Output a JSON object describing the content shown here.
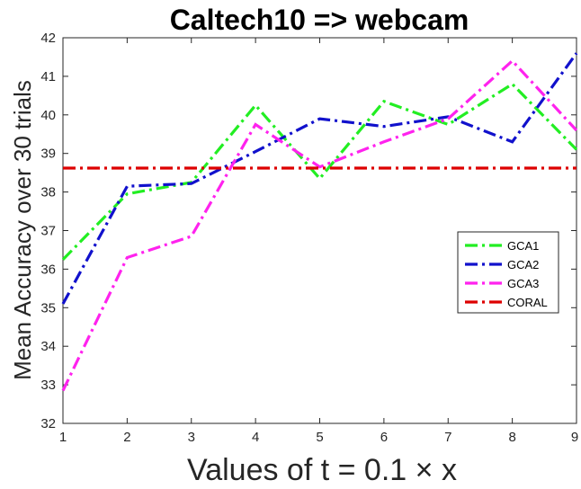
{
  "chart_data": {
    "type": "line",
    "title": "Caltech10 => webcam",
    "xlabel": "Values of t = 0.1 × x",
    "ylabel": "Mean Accuracy over 30 trials",
    "xlim": [
      1,
      9
    ],
    "ylim": [
      32,
      42
    ],
    "xticks": [
      1,
      2,
      3,
      4,
      5,
      6,
      7,
      8,
      9
    ],
    "yticks": [
      32,
      33,
      34,
      35,
      36,
      37,
      38,
      39,
      40,
      41,
      42
    ],
    "grid": false,
    "legend_position": "right",
    "x": [
      1,
      2,
      3,
      4,
      5,
      6,
      7,
      8,
      9
    ],
    "series": [
      {
        "name": "GCA1",
        "values": [
          36.25,
          37.95,
          38.25,
          40.25,
          38.35,
          40.35,
          39.75,
          40.8,
          39.1
        ],
        "color": "#22ee22",
        "dash": "dashdot"
      },
      {
        "name": "GCA2",
        "values": [
          35.1,
          38.15,
          38.22,
          39.05,
          39.9,
          39.7,
          39.95,
          39.3,
          41.6
        ],
        "color": "#1111cc",
        "dash": "dashdot"
      },
      {
        "name": "GCA3",
        "values": [
          32.85,
          36.3,
          36.85,
          39.75,
          38.65,
          39.3,
          39.9,
          41.4,
          39.6
        ],
        "color": "#ff22ee",
        "dash": "dashdot"
      },
      {
        "name": "CORAL",
        "values": [
          38.62,
          38.62,
          38.62,
          38.62,
          38.62,
          38.62,
          38.62,
          38.62,
          38.62
        ],
        "color": "#dd0000",
        "dash": "dashdot"
      }
    ]
  }
}
